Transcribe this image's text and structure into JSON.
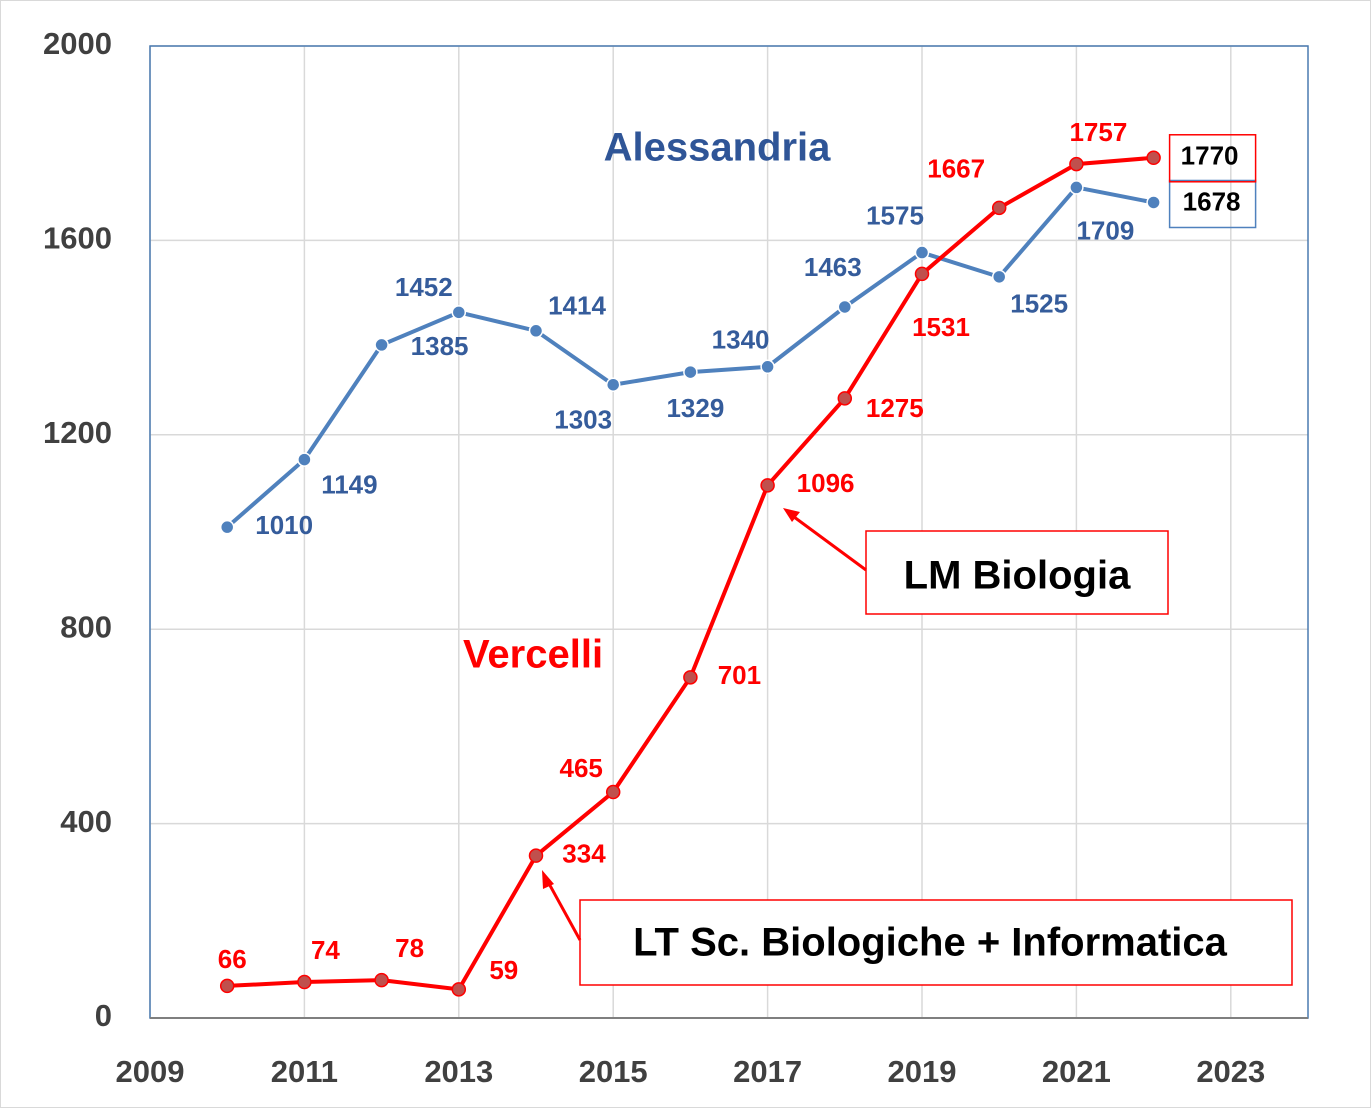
{
  "chart_data": {
    "type": "line",
    "x": [
      2010,
      2011,
      2012,
      2013,
      2014,
      2015,
      2016,
      2017,
      2018,
      2019,
      2020,
      2021,
      2022
    ],
    "xlim": [
      2009,
      2024
    ],
    "xticks": [
      2009,
      2011,
      2013,
      2015,
      2017,
      2019,
      2021,
      2023
    ],
    "ylim": [
      0,
      2000
    ],
    "yticks": [
      0,
      400,
      800,
      1200,
      1600,
      2000
    ],
    "grid": true,
    "series": [
      {
        "name": "Alessandria",
        "color": "#4f81bd",
        "values": [
          1010,
          1149,
          1385,
          1452,
          1414,
          1303,
          1329,
          1340,
          1463,
          1575,
          1525,
          1709,
          1678
        ]
      },
      {
        "name": "Vercelli",
        "color": "#ff0000",
        "values": [
          66,
          74,
          78,
          59,
          334,
          465,
          701,
          1096,
          1275,
          1531,
          1667,
          1757,
          1770
        ]
      }
    ],
    "annotations": [
      "LM Biologia",
      "LT Sc. Biologiche + Informatica"
    ]
  }
}
